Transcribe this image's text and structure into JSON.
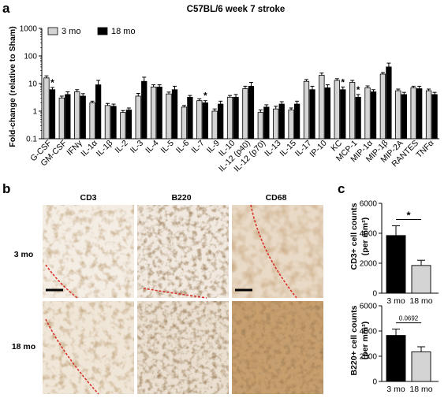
{
  "panels": {
    "a": "a",
    "b": "b",
    "c": "c"
  },
  "chart_data": [
    {
      "type": "bar",
      "panel": "a",
      "title": "C57BL/6 week 7 stroke",
      "ylabel": "Fold-change (relative to Sham)",
      "yscale": "log",
      "ylim": [
        0.1,
        1000
      ],
      "yticks": [
        "0.1",
        "1",
        "10",
        "100",
        "1000"
      ],
      "legend": "top-left",
      "categories": [
        "G-CSF",
        "GM-CSF",
        "IFNγ",
        "IL-1α",
        "IL-1β",
        "IL-2",
        "IL-3",
        "IL-4",
        "IL-5",
        "IL-6",
        "IL-7",
        "IL-9",
        "IL-10",
        "IL-12 (p40)",
        "IL-12 (p70)",
        "IL-13",
        "IL-15",
        "IL-17",
        "IP-10",
        "KC",
        "MCP-1",
        "MIP-1α",
        "MIP-1β",
        "MIP-2A",
        "RANTES",
        "TNFα"
      ],
      "series": [
        {
          "name": "3 mo",
          "color": "#d4d4d4",
          "values": [
            16,
            3.0,
            5.0,
            2.0,
            1.6,
            0.9,
            3.5,
            7.5,
            4.2,
            1.4,
            2.4,
            1.0,
            3.2,
            6.5,
            0.9,
            1.2,
            1.1,
            12,
            20,
            13,
            11,
            7.0,
            22,
            5.5,
            7,
            5.5
          ],
          "errors": [
            3,
            0.5,
            1.0,
            0.3,
            0.3,
            0.15,
            0.9,
            1.5,
            0.7,
            0.2,
            0.4,
            0.2,
            0.5,
            1.5,
            0.2,
            0.3,
            0.2,
            2,
            4,
            2,
            2,
            1.2,
            3,
            0.8,
            1,
            0.8
          ]
        },
        {
          "name": "18 mo",
          "color": "#000000",
          "values": [
            6.0,
            4.0,
            3.5,
            9.0,
            1.5,
            1.1,
            12,
            7.5,
            6.0,
            3.2,
            2.0,
            1.8,
            3.2,
            8.0,
            1.4,
            1.8,
            1.8,
            6.0,
            7.0,
            6.0,
            3.2,
            5.0,
            40,
            4.0,
            6.5,
            4.0
          ],
          "errors": [
            1.2,
            1.0,
            0.8,
            4.0,
            0.3,
            0.2,
            5,
            1.5,
            2.0,
            0.5,
            0.4,
            0.5,
            0.8,
            3.0,
            0.3,
            0.4,
            0.5,
            2,
            2,
            1.5,
            0.8,
            1.0,
            15,
            0.8,
            1.5,
            0.8
          ]
        }
      ],
      "annotations": [
        {
          "category": "G-CSF",
          "text": "*"
        },
        {
          "category": "IL-7",
          "text": "*"
        },
        {
          "category": "KC",
          "text": "*"
        },
        {
          "category": "MCP-1",
          "text": "*"
        }
      ]
    },
    {
      "type": "bar",
      "panel": "c",
      "ylabel": "CD3+ cell counts",
      "ylabel2": "(per mm²)",
      "ylim": [
        0,
        6000
      ],
      "yticks": [
        "0",
        "2000",
        "4000",
        "6000"
      ],
      "categories": [
        "3 mo",
        "18 mo"
      ],
      "values": [
        3850,
        1850
      ],
      "errors": [
        650,
        350
      ],
      "colors": [
        "#000000",
        "#d4d4d4"
      ],
      "significance": "*"
    },
    {
      "type": "bar",
      "panel": "c",
      "ylabel": "B220+ cell counts",
      "ylabel2": "(per mm²)",
      "ylim": [
        0,
        6000
      ],
      "yticks": [
        "0",
        "2000",
        "4000",
        "6000"
      ],
      "categories": [
        "3 mo",
        "18 mo"
      ],
      "values": [
        3650,
        2350
      ],
      "errors": [
        500,
        400
      ],
      "colors": [
        "#000000",
        "#d4d4d4"
      ],
      "significance": "0.0692"
    }
  ],
  "micrographs": {
    "columns": [
      "CD3",
      "B220",
      "CD68"
    ],
    "rows": [
      "3 mo",
      "18 mo"
    ]
  }
}
